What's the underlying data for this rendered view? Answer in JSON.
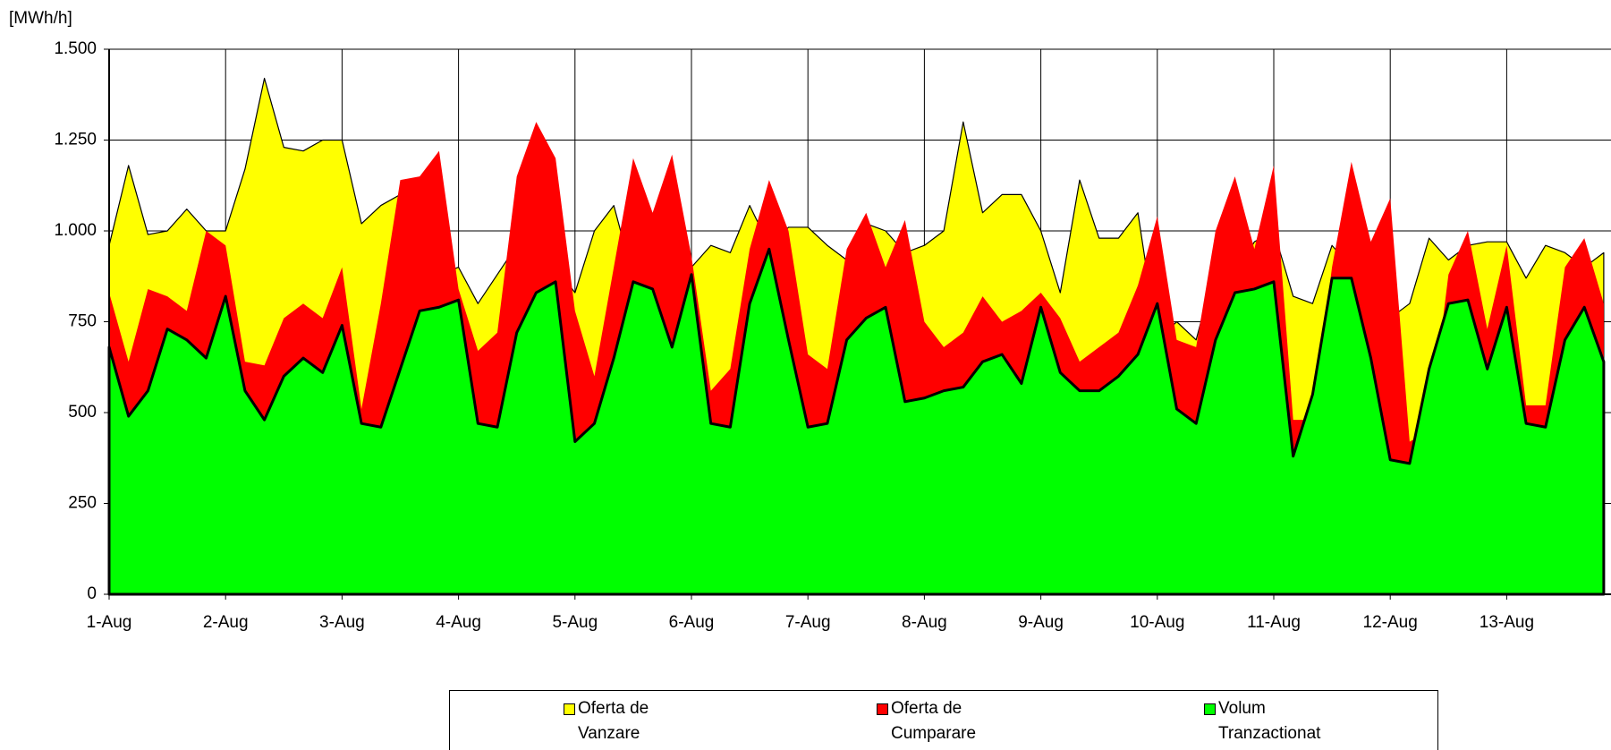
{
  "chart_data": {
    "type": "area",
    "y_label": "[MWh/h]",
    "categories": [
      "1-Aug",
      null,
      null,
      null,
      null,
      null,
      "2-Aug",
      null,
      null,
      null,
      null,
      null,
      "3-Aug",
      null,
      null,
      null,
      null,
      null,
      "4-Aug",
      null,
      null,
      null,
      null,
      null,
      "5-Aug",
      null,
      null,
      null,
      null,
      null,
      "6-Aug",
      null,
      null,
      null,
      null,
      null,
      "7-Aug",
      null,
      null,
      null,
      null,
      null,
      "8-Aug",
      null,
      null,
      null,
      null,
      null,
      "9-Aug",
      null,
      null,
      null,
      null,
      null,
      "10-Aug",
      null,
      null,
      null,
      null,
      null,
      "11-Aug",
      null,
      null,
      null,
      null,
      null,
      "12-Aug",
      null,
      null,
      null,
      null,
      null,
      "13-Aug",
      null,
      null,
      null,
      null,
      null
    ],
    "series": [
      {
        "name": "Oferta de Vanzare",
        "color": "#ffff00",
        "values": [
          960,
          1180,
          990,
          1000,
          1060,
          1000,
          1000,
          1170,
          1420,
          1230,
          1220,
          1250,
          1250,
          1020,
          1070,
          1100,
          860,
          880,
          900,
          800,
          880,
          960,
          940,
          900,
          830,
          1000,
          1070,
          870,
          900,
          940,
          900,
          960,
          940,
          1070,
          960,
          1010,
          1010,
          960,
          920,
          1020,
          1000,
          940,
          960,
          1000,
          1300,
          1050,
          1100,
          1100,
          1000,
          830,
          1140,
          980,
          980,
          1050,
          700,
          750,
          700,
          900,
          880,
          970,
          1000,
          820,
          800,
          960,
          900,
          940,
          760,
          800,
          980,
          920,
          960,
          970,
          970,
          870,
          960,
          940,
          900,
          940
        ]
      },
      {
        "name": "Oferta de Cumparare",
        "color": "#ff0000",
        "values": [
          830,
          640,
          840,
          820,
          780,
          1000,
          960,
          640,
          630,
          760,
          800,
          760,
          900,
          510,
          800,
          1140,
          1150,
          1220,
          840,
          670,
          720,
          1150,
          1300,
          1200,
          780,
          600,
          900,
          1200,
          1050,
          1210,
          930,
          560,
          620,
          950,
          1140,
          1000,
          660,
          620,
          950,
          1050,
          900,
          1030,
          750,
          680,
          720,
          820,
          750,
          780,
          830,
          760,
          640,
          680,
          720,
          850,
          1040,
          700,
          680,
          1000,
          1150,
          950,
          1180,
          480,
          480,
          900,
          1190,
          970,
          1090,
          420,
          450,
          880,
          1000,
          730,
          960,
          520,
          520,
          900,
          980,
          800
        ]
      },
      {
        "name": "Volum Tranzactionat",
        "color": "#00ff00",
        "values": [
          680,
          490,
          560,
          730,
          700,
          650,
          820,
          560,
          480,
          600,
          650,
          610,
          740,
          470,
          460,
          620,
          780,
          790,
          810,
          470,
          460,
          720,
          830,
          860,
          420,
          470,
          650,
          860,
          840,
          680,
          880,
          470,
          460,
          800,
          950,
          700,
          460,
          470,
          700,
          760,
          790,
          530,
          540,
          560,
          570,
          640,
          660,
          580,
          790,
          610,
          560,
          560,
          600,
          660,
          800,
          510,
          470,
          700,
          830,
          840,
          860,
          380,
          550,
          870,
          870,
          650,
          370,
          360,
          620,
          800,
          810,
          620,
          790,
          470,
          460,
          700,
          790,
          640
        ]
      }
    ],
    "ylim": [
      0,
      1500
    ],
    "yticks": [
      0,
      250,
      500,
      750,
      {
        "value": 1000,
        "label": "1.000"
      },
      {
        "value": 1250,
        "label": "1.250"
      },
      {
        "value": 1500,
        "label": "1.500"
      }
    ],
    "grid": true
  }
}
